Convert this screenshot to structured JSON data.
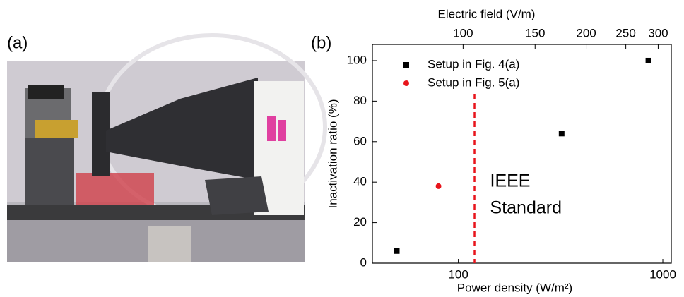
{
  "panel_a": {
    "label": "(a)"
  },
  "chart_data": {
    "type": "scatter",
    "panel_label": "(b)",
    "x_label": "Power density (W/m²)",
    "y_label": "Inactivation ratio (%)",
    "x2_label": "Electric field (V/m)",
    "xscale": "log",
    "xlim": [
      38,
      1100
    ],
    "xticks": [
      100,
      1000
    ],
    "x2scale": "log",
    "x2lim": [
      60,
      323
    ],
    "x2ticks": [
      100,
      150,
      200,
      250,
      300
    ],
    "ylim": [
      0,
      108
    ],
    "yticks": [
      0,
      20,
      40,
      60,
      80,
      100
    ],
    "legend": "top-left",
    "series": [
      {
        "name": "Setup in Fig. 4(a)",
        "color": "#000000",
        "marker": "square",
        "x": [
          50,
          320,
          850
        ],
        "values": [
          6,
          64,
          100
        ]
      },
      {
        "name": "Setup in Fig. 5(a)",
        "color": "#e8141b",
        "marker": "circle",
        "x": [
          80
        ],
        "values": [
          38
        ]
      }
    ],
    "reference_line": {
      "x": 120,
      "color": "#e8141b",
      "label": [
        "IEEE",
        "Standard"
      ]
    }
  }
}
